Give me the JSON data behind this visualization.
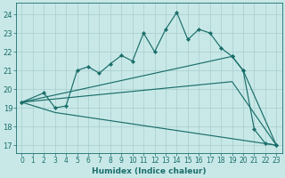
{
  "xlabel": "Humidex (Indice chaleur)",
  "bg_color": "#c8e8e8",
  "line_color": "#1a6e6a",
  "xlim": [
    -0.5,
    23.5
  ],
  "ylim": [
    16.6,
    24.6
  ],
  "xticks": [
    0,
    1,
    2,
    3,
    4,
    5,
    6,
    7,
    8,
    9,
    10,
    11,
    12,
    13,
    14,
    15,
    16,
    17,
    18,
    19,
    20,
    21,
    22,
    23
  ],
  "yticks": [
    17,
    18,
    19,
    20,
    21,
    22,
    23,
    24
  ],
  "grid_color": "#a8cccc",
  "series": [
    {
      "x": [
        0,
        2,
        3,
        4,
        5,
        6,
        7,
        8,
        9,
        10,
        11,
        12,
        13,
        14,
        15,
        16,
        17,
        18,
        19,
        20,
        21,
        22,
        23
      ],
      "y": [
        19.3,
        19.8,
        19.0,
        19.1,
        21.0,
        21.2,
        20.85,
        21.35,
        21.8,
        21.5,
        23.0,
        22.0,
        23.2,
        24.1,
        22.65,
        23.2,
        23.0,
        22.2,
        21.75,
        21.0,
        17.85,
        17.1,
        17.0
      ],
      "markers": true
    },
    {
      "x": [
        0,
        19,
        20,
        23
      ],
      "y": [
        19.3,
        21.75,
        21.0,
        17.0
      ],
      "markers": true
    },
    {
      "x": [
        0,
        19,
        23
      ],
      "y": [
        19.3,
        20.4,
        17.0
      ],
      "markers": false
    },
    {
      "x": [
        0,
        3,
        23
      ],
      "y": [
        19.3,
        18.75,
        17.0
      ],
      "markers": false
    }
  ]
}
